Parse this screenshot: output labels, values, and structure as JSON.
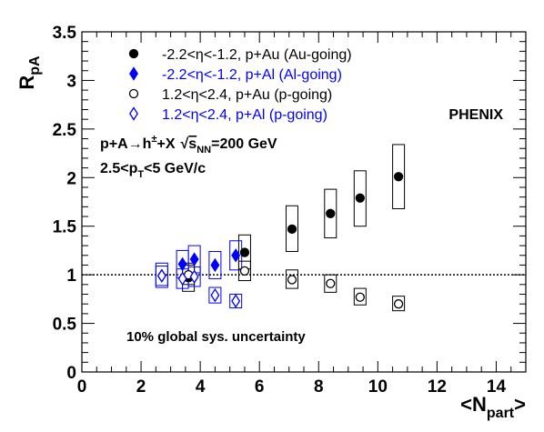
{
  "chart_data": {
    "type": "scatter",
    "experiment": "PHENIX",
    "ylabel": {
      "main": "R",
      "sub": "pA"
    },
    "xlabel": {
      "main": "<N",
      "sub": "part",
      "end": ">"
    },
    "xlim": [
      0,
      15
    ],
    "ylim": [
      0,
      3.5
    ],
    "x_ticks": [
      "0",
      "2",
      "4",
      "6",
      "8",
      "10",
      "12",
      "14"
    ],
    "y_ticks": [
      "0",
      "0.5",
      "1",
      "1.5",
      "2",
      "2.5",
      "3",
      "3.5"
    ],
    "reference_line": 1,
    "reaction": {
      "a": "p+A",
      "arrow": "→",
      "b": "h",
      "b_sup": "±",
      "c": "+X",
      "sqrt": "√",
      "s": "s",
      "s_sub": "NN",
      "energy": "=200 GeV"
    },
    "pt_range": {
      "a": "2.5<p",
      "sub": "T",
      "b": "<5 GeV/c"
    },
    "global_uncertainty": "10% global sys. uncertainty",
    "colors": {
      "black": "#000000",
      "blue": "#0000ff"
    },
    "series": [
      {
        "name": "-2.2<η<-1.2, p+Au (Au-going)",
        "marker": "filled-circle",
        "color": "#000000",
        "points": [
          {
            "x": 3.6,
            "y": 0.97,
            "sys_lo": 0.83,
            "sys_hi": 1.12
          },
          {
            "x": 5.5,
            "y": 1.23,
            "sys_lo": 1.06,
            "sys_hi": 1.41
          },
          {
            "x": 7.1,
            "y": 1.47,
            "sys_lo": 1.24,
            "sys_hi": 1.71
          },
          {
            "x": 8.4,
            "y": 1.63,
            "sys_lo": 1.38,
            "sys_hi": 1.88
          },
          {
            "x": 9.4,
            "y": 1.79,
            "sys_lo": 1.5,
            "sys_hi": 2.07
          },
          {
            "x": 10.7,
            "y": 2.01,
            "sys_lo": 1.68,
            "sys_hi": 2.34
          }
        ]
      },
      {
        "name": "-2.2<η<-1.2, p+Al (Al-going)",
        "marker": "filled-diamond",
        "color": "#0000ff",
        "points": [
          {
            "x": 2.7,
            "y": 0.99,
            "sys_lo": 0.87,
            "sys_hi": 1.12
          },
          {
            "x": 3.4,
            "y": 1.11,
            "sys_lo": 0.97,
            "sys_hi": 1.25
          },
          {
            "x": 3.8,
            "y": 1.16,
            "sys_lo": 1.02,
            "sys_hi": 1.3
          },
          {
            "x": 4.5,
            "y": 1.1,
            "sys_lo": 0.96,
            "sys_hi": 1.24
          },
          {
            "x": 5.2,
            "y": 1.2,
            "sys_lo": 1.05,
            "sys_hi": 1.35
          }
        ]
      },
      {
        "name": "1.2<η<2.4, p+Au (p-going)",
        "marker": "open-circle",
        "color": "#000000",
        "points": [
          {
            "x": 3.6,
            "y": 1.0,
            "sys_lo": 0.9,
            "sys_hi": 1.1
          },
          {
            "x": 5.5,
            "y": 1.04,
            "sys_lo": 0.94,
            "sys_hi": 1.14
          },
          {
            "x": 7.1,
            "y": 0.95,
            "sys_lo": 0.86,
            "sys_hi": 1.05
          },
          {
            "x": 8.4,
            "y": 0.91,
            "sys_lo": 0.82,
            "sys_hi": 1.0
          },
          {
            "x": 9.4,
            "y": 0.77,
            "sys_lo": 0.69,
            "sys_hi": 0.86
          },
          {
            "x": 10.7,
            "y": 0.7,
            "sys_lo": 0.63,
            "sys_hi": 0.78
          }
        ]
      },
      {
        "name": "1.2<η<2.4, p+Al (p-going)",
        "marker": "open-diamond",
        "color": "#0000ff",
        "points": [
          {
            "x": 2.7,
            "y": 0.99,
            "sys_lo": 0.89,
            "sys_hi": 1.09
          },
          {
            "x": 3.4,
            "y": 0.96,
            "sys_lo": 0.86,
            "sys_hi": 1.06
          },
          {
            "x": 3.8,
            "y": 0.98,
            "sys_lo": 0.88,
            "sys_hi": 1.08
          },
          {
            "x": 4.5,
            "y": 0.79,
            "sys_lo": 0.71,
            "sys_hi": 0.87
          },
          {
            "x": 5.2,
            "y": 0.73,
            "sys_lo": 0.66,
            "sys_hi": 0.8
          }
        ]
      }
    ]
  }
}
